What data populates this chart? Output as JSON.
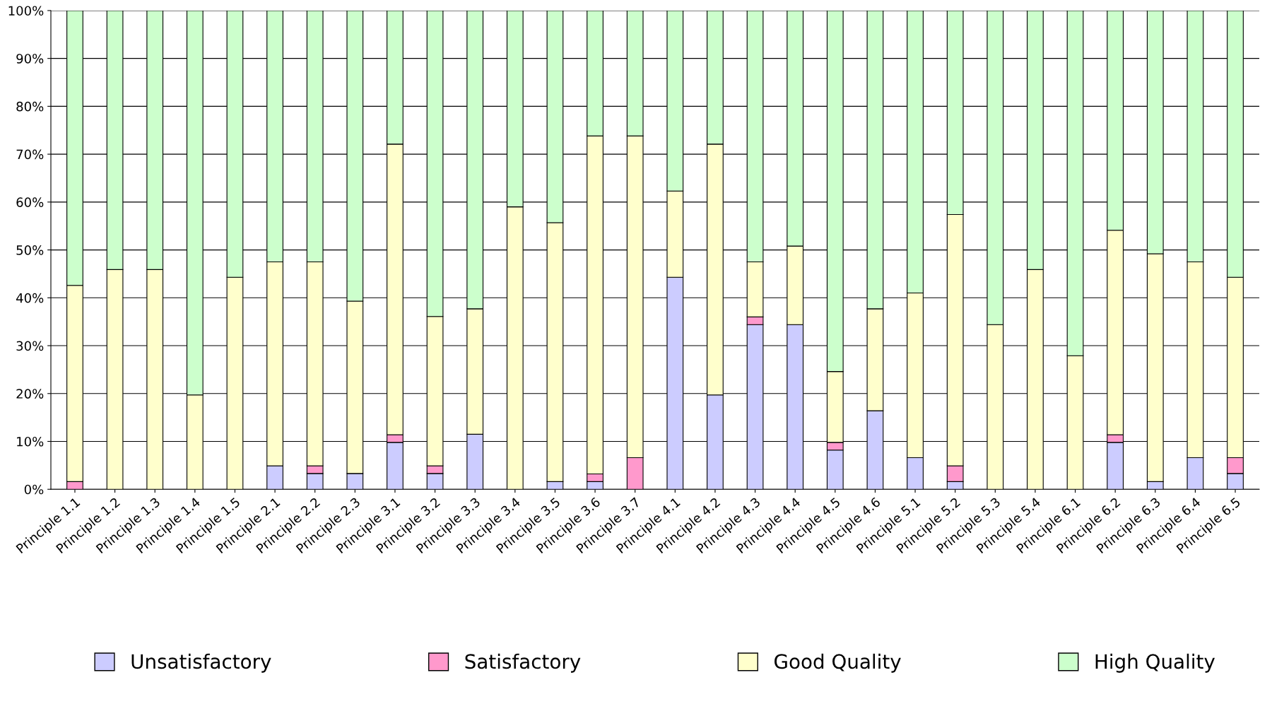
{
  "chart_data": {
    "type": "bar",
    "stacked": true,
    "categories": [
      "Principle 1.1",
      "Principle 1.2",
      "Principle 1.3",
      "Principle 1.4",
      "Principle 1.5",
      "Principle 2.1",
      "Principle 2.2",
      "Principle 2.3",
      "Principle 3.1",
      "Principle 3.2",
      "Principle 3.3",
      "Principle 3.4",
      "Principle 3.5",
      "Principle 3.6",
      "Principle 3.7",
      "Principle 4.1",
      "Principle 4.2",
      "Principle 4.3",
      "Principle 4.4",
      "Principle 4.5",
      "Principle 4.6",
      "Principle 5.1",
      "Principle 5.2",
      "Principle 5.3",
      "Principle 5.4",
      "Principle 6.1",
      "Principle 6.2",
      "Principle 6.3",
      "Principle 6.4",
      "Principle 6.5"
    ],
    "series": [
      {
        "name": "Unsatisfactory",
        "color": "#ccccff",
        "values": [
          0,
          0,
          0,
          0,
          0,
          4.9,
          3.3,
          3.3,
          9.8,
          3.3,
          11.5,
          0,
          1.6,
          1.6,
          0,
          44.3,
          19.7,
          34.4,
          34.4,
          8.2,
          16.4,
          6.6,
          1.6,
          0,
          0,
          0,
          9.8,
          1.6,
          6.6,
          3.3
        ]
      },
      {
        "name": "Satisfactory",
        "color": "#ff99cc",
        "values": [
          1.6,
          0,
          0,
          0,
          0,
          0,
          1.6,
          0,
          1.6,
          1.6,
          0,
          0,
          0,
          1.6,
          6.6,
          0,
          0,
          1.6,
          0,
          1.6,
          0,
          0,
          3.3,
          0,
          0,
          0,
          1.6,
          0,
          0,
          3.3
        ]
      },
      {
        "name": "Good Quality",
        "color": "#ffffcc",
        "values": [
          41.0,
          45.9,
          45.9,
          19.7,
          44.3,
          42.6,
          42.6,
          36.0,
          60.7,
          31.2,
          26.2,
          59.0,
          54.1,
          70.6,
          67.2,
          18.0,
          52.4,
          11.5,
          16.4,
          14.8,
          21.3,
          34.4,
          52.5,
          34.4,
          45.9,
          27.9,
          42.7,
          47.6,
          40.9,
          37.7
        ]
      },
      {
        "name": "High Quality",
        "color": "#ccffcc",
        "values": [
          57.4,
          54.1,
          54.1,
          80.3,
          55.7,
          52.5,
          52.5,
          60.7,
          27.9,
          63.9,
          62.3,
          41.0,
          44.3,
          26.2,
          26.2,
          37.7,
          27.9,
          52.5,
          49.2,
          75.4,
          62.3,
          59.0,
          42.6,
          65.6,
          54.1,
          72.1,
          45.9,
          50.8,
          52.5,
          55.7
        ]
      }
    ],
    "ylim": [
      0,
      100
    ],
    "yticks": [
      {
        "value": 0,
        "label": "0%"
      },
      {
        "value": 10,
        "label": "10%"
      },
      {
        "value": 20,
        "label": "20%"
      },
      {
        "value": 30,
        "label": "30%"
      },
      {
        "value": 40,
        "label": "40%"
      },
      {
        "value": 50,
        "label": "50%"
      },
      {
        "value": 60,
        "label": "60%"
      },
      {
        "value": 70,
        "label": "70%"
      },
      {
        "value": 80,
        "label": "80%"
      },
      {
        "value": 90,
        "label": "90%"
      },
      {
        "value": 100,
        "label": "100%"
      }
    ],
    "grid": "y",
    "legend": "bottom"
  }
}
